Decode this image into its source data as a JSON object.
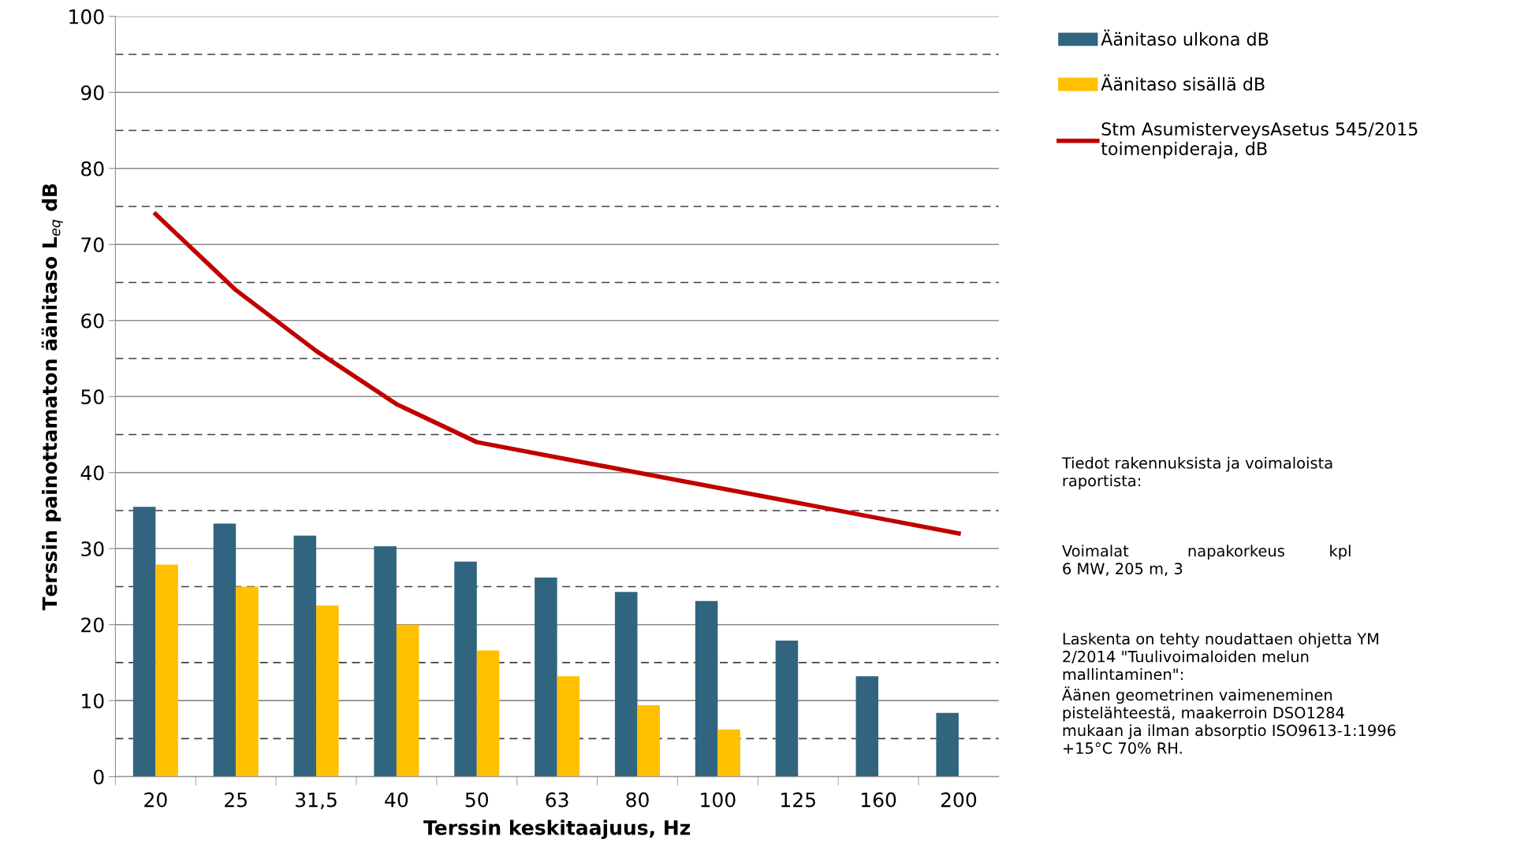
{
  "chart_data": {
    "type": "bar",
    "xlabel": "Terssin keskitaajuus, Hz",
    "ylabel": "Terssin painottamaton äänitaso L$_{eq}$ dB",
    "categories": [
      "20",
      "25",
      "31,5",
      "40",
      "50",
      "63",
      "80",
      "100",
      "125",
      "160",
      "200"
    ],
    "series": [
      {
        "name": "Äänitaso ulkona dB",
        "color": "#31657f",
        "values": [
          35.5,
          33.3,
          31.7,
          30.3,
          28.3,
          26.2,
          24.3,
          23.1,
          17.9,
          13.2,
          8.4
        ]
      },
      {
        "name": "Äänitaso sisällä dB",
        "color": "#ffc000",
        "values": [
          27.9,
          25.0,
          22.5,
          20.0,
          16.6,
          13.2,
          9.4,
          6.2,
          0,
          0,
          0
        ]
      },
      {
        "name": "Stm AsumisterveysAsetus 545/2015\ntoimenpideraja, dB",
        "color": "#c00000",
        "type": "line",
        "values": [
          74,
          64,
          56,
          49,
          44,
          42,
          40,
          38,
          36,
          34,
          32
        ]
      }
    ],
    "ylim": [
      0,
      100
    ],
    "yticks": [
      0,
      10,
      20,
      30,
      40,
      50,
      60,
      70,
      80,
      90,
      100
    ],
    "grid": "y",
    "legend": "right",
    "ref_lines": [
      {
        "axis": "y",
        "value": 5,
        "color": "#404040",
        "line_style": "dashed"
      },
      {
        "axis": "y",
        "value": 15,
        "color": "#404040",
        "line_style": "dashed"
      },
      {
        "axis": "y",
        "value": 25,
        "color": "#404040",
        "line_style": "dashed"
      },
      {
        "axis": "y",
        "value": 35,
        "color": "#404040",
        "line_style": "dashed"
      },
      {
        "axis": "y",
        "value": 45,
        "color": "#404040",
        "line_style": "dashed"
      },
      {
        "axis": "y",
        "value": 55,
        "color": "#404040",
        "line_style": "dashed"
      },
      {
        "axis": "y",
        "value": 65,
        "color": "#404040",
        "line_style": "dashed"
      },
      {
        "axis": "y",
        "value": 75,
        "color": "#404040",
        "line_style": "dashed"
      },
      {
        "axis": "y",
        "value": 85,
        "color": "#404040",
        "line_style": "dashed"
      },
      {
        "axis": "y",
        "value": 95,
        "color": "#404040",
        "line_style": "dashed"
      }
    ],
    "annotations": [
      "Tiedot rakennuksista ja voimaloista\nraportista:",
      "Voimalat            napakorkeus         kpl\n6 MW, 205 m, 3",
      "Laskenta on tehty noudattaen ohjetta YM\n2/2014 \"Tuulivoimaloiden melun\nmallintaminen\":\nÄänen geometrinen vaimeneminen\npistelähteestä, maakerroin DSO1284\nmukaan ja ilman absorptio ISO9613-1:1996\n+15°C 70% RH."
    ]
  }
}
